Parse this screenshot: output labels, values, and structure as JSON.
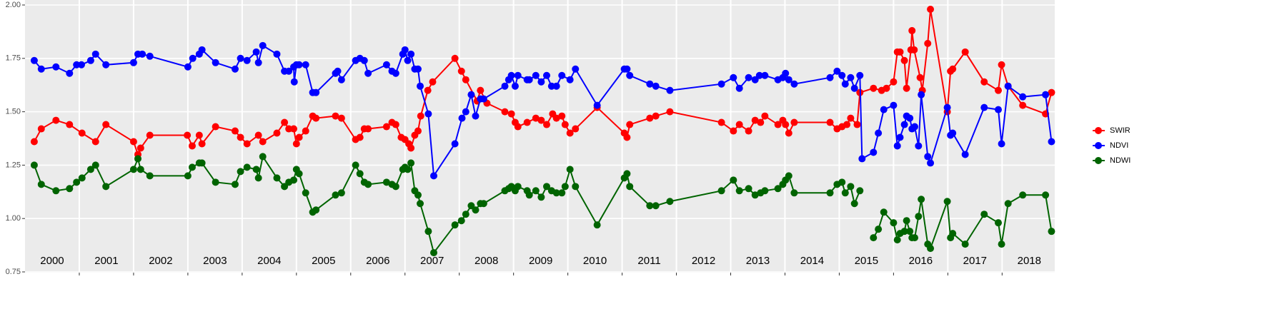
{
  "chart_data": {
    "type": "line",
    "xlim": [
      2000,
      2018.97
    ],
    "xticks": [
      2001,
      2002,
      2003,
      2004,
      2005,
      2006,
      2007,
      2008,
      2009,
      2010,
      2011,
      2012,
      2013,
      2014,
      2015,
      2016,
      2017,
      2018
    ],
    "year_labels": [
      "2000",
      "2001",
      "2002",
      "2003",
      "2004",
      "2005",
      "2006",
      "2007",
      "2008",
      "2009",
      "2010",
      "2011",
      "2012",
      "2013",
      "2014",
      "2015",
      "2016",
      "2017",
      "2018"
    ],
    "ylim": [
      0.75,
      2.0
    ],
    "yticks": [
      0.75,
      {
        "value": 1.0,
        "label": "1.00"
      },
      1.25,
      {
        "value": 1.5,
        "label": "1.50"
      },
      1.75,
      {
        "value": 2.0,
        "label": "2.00"
      }
    ],
    "grid": true,
    "legend": "right",
    "series": [
      {
        "name": "SWIR",
        "color": "#ff0000",
        "x": [
          2000.17,
          2000.3,
          2000.57,
          2000.82,
          2001.05,
          2001.3,
          2001.49,
          2002.0,
          2002.08,
          2002.13,
          2002.3,
          2002.99,
          2003.08,
          2003.21,
          2003.26,
          2003.51,
          2003.87,
          2003.97,
          2004.09,
          2004.3,
          2004.38,
          2004.64,
          2004.78,
          2004.86,
          2004.95,
          2005.0,
          2005.05,
          2005.17,
          2005.3,
          2005.36,
          2005.72,
          2005.83,
          2006.09,
          2006.17,
          2006.25,
          2006.32,
          2006.66,
          2006.76,
          2006.83,
          2006.93,
          2007.0,
          2007.07,
          2007.11,
          2007.18,
          2007.24,
          2007.29,
          2007.42,
          2007.51,
          2007.92,
          2008.04,
          2008.12,
          2008.33,
          2008.39,
          2008.51,
          2008.84,
          2008.96,
          2009.03,
          2009.08,
          2009.25,
          2009.41,
          2009.51,
          2009.61,
          2009.72,
          2009.79,
          2009.89,
          2009.95,
          2010.04,
          2010.14,
          2010.54,
          2011.04,
          2011.09,
          2011.14,
          2011.51,
          2011.62,
          2011.88,
          2012.83,
          2013.05,
          2013.16,
          2013.33,
          2013.45,
          2013.55,
          2013.63,
          2013.87,
          2013.96,
          2014.01,
          2014.07,
          2014.17,
          2014.83,
          2014.96,
          2015.05,
          2015.14,
          2015.21,
          2015.33,
          2015.38,
          2015.63,
          2015.78,
          2015.87,
          2016.0,
          2016.07,
          2016.12,
          2016.2,
          2016.24,
          2016.32,
          2016.34,
          2016.38,
          2016.49,
          2016.53,
          2016.63,
          2016.68,
          2016.99,
          2017.05,
          2017.09,
          2017.32,
          2017.67,
          2017.93,
          2017.99,
          2018.11,
          2018.38,
          2018.8,
          2018.91
        ],
        "values": [
          1.36,
          1.42,
          1.46,
          1.44,
          1.4,
          1.36,
          1.44,
          1.36,
          1.3,
          1.33,
          1.39,
          1.39,
          1.34,
          1.39,
          1.35,
          1.43,
          1.41,
          1.38,
          1.35,
          1.39,
          1.36,
          1.4,
          1.45,
          1.42,
          1.42,
          1.35,
          1.38,
          1.41,
          1.48,
          1.47,
          1.48,
          1.47,
          1.37,
          1.38,
          1.42,
          1.42,
          1.43,
          1.45,
          1.44,
          1.38,
          1.37,
          1.35,
          1.33,
          1.39,
          1.41,
          1.48,
          1.6,
          1.64,
          1.75,
          1.69,
          1.65,
          1.55,
          1.6,
          1.54,
          1.5,
          1.49,
          1.45,
          1.43,
          1.45,
          1.47,
          1.46,
          1.44,
          1.49,
          1.47,
          1.48,
          1.44,
          1.4,
          1.42,
          1.52,
          1.4,
          1.38,
          1.44,
          1.47,
          1.48,
          1.5,
          1.45,
          1.41,
          1.44,
          1.41,
          1.46,
          1.45,
          1.48,
          1.44,
          1.46,
          1.44,
          1.4,
          1.45,
          1.45,
          1.42,
          1.43,
          1.44,
          1.47,
          1.44,
          1.59,
          1.61,
          1.6,
          1.61,
          1.64,
          1.78,
          1.78,
          1.74,
          1.61,
          1.79,
          1.88,
          1.79,
          1.66,
          1.6,
          1.82,
          1.98,
          1.5,
          1.69,
          1.7,
          1.78,
          1.64,
          1.6,
          1.72,
          1.62,
          1.53,
          1.49,
          1.59
        ]
      },
      {
        "name": "NDVI",
        "color": "#0000ff",
        "x": [
          2000.17,
          2000.3,
          2000.57,
          2000.82,
          2000.95,
          2001.04,
          2001.21,
          2001.3,
          2001.49,
          2002.0,
          2002.08,
          2002.16,
          2002.3,
          2003.0,
          2003.09,
          2003.21,
          2003.26,
          2003.51,
          2003.87,
          2003.97,
          2004.09,
          2004.26,
          2004.3,
          2004.38,
          2004.64,
          2004.78,
          2004.86,
          2004.95,
          2004.96,
          2005.0,
          2005.05,
          2005.17,
          2005.3,
          2005.36,
          2005.72,
          2005.76,
          2005.83,
          2006.09,
          2006.17,
          2006.25,
          2006.32,
          2006.66,
          2006.76,
          2006.83,
          2006.96,
          2007.0,
          2007.05,
          2007.11,
          2007.18,
          2007.24,
          2007.28,
          2007.43,
          2007.53,
          2007.92,
          2008.05,
          2008.12,
          2008.22,
          2008.3,
          2008.39,
          2008.45,
          2008.84,
          2008.91,
          2008.96,
          2009.03,
          2009.08,
          2009.25,
          2009.29,
          2009.41,
          2009.51,
          2009.61,
          2009.7,
          2009.79,
          2009.89,
          2010.04,
          2010.14,
          2010.54,
          2011.04,
          2011.09,
          2011.14,
          2011.51,
          2011.62,
          2011.88,
          2012.83,
          2013.05,
          2013.16,
          2013.33,
          2013.45,
          2013.53,
          2013.63,
          2013.87,
          2013.96,
          2014.01,
          2014.07,
          2014.17,
          2014.83,
          2014.96,
          2015.05,
          2015.11,
          2015.21,
          2015.28,
          2015.38,
          2015.42,
          2015.63,
          2015.72,
          2015.82,
          2016.0,
          2016.07,
          2016.12,
          2016.2,
          2016.24,
          2016.3,
          2016.34,
          2016.39,
          2016.46,
          2016.51,
          2016.63,
          2016.68,
          2016.99,
          2017.05,
          2017.09,
          2017.32,
          2017.67,
          2017.93,
          2017.99,
          2018.11,
          2018.38,
          2018.8,
          2018.91
        ],
        "values": [
          1.74,
          1.7,
          1.71,
          1.68,
          1.72,
          1.72,
          1.74,
          1.77,
          1.72,
          1.73,
          1.77,
          1.77,
          1.76,
          1.71,
          1.75,
          1.77,
          1.79,
          1.73,
          1.7,
          1.75,
          1.74,
          1.78,
          1.73,
          1.81,
          1.77,
          1.69,
          1.69,
          1.71,
          1.64,
          1.72,
          1.72,
          1.72,
          1.59,
          1.59,
          1.68,
          1.69,
          1.65,
          1.74,
          1.75,
          1.74,
          1.68,
          1.72,
          1.69,
          1.68,
          1.77,
          1.79,
          1.74,
          1.77,
          1.7,
          1.7,
          1.62,
          1.49,
          1.2,
          1.35,
          1.47,
          1.5,
          1.58,
          1.48,
          1.56,
          1.56,
          1.62,
          1.65,
          1.67,
          1.62,
          1.67,
          1.65,
          1.65,
          1.67,
          1.64,
          1.67,
          1.62,
          1.62,
          1.67,
          1.65,
          1.7,
          1.53,
          1.7,
          1.7,
          1.67,
          1.63,
          1.62,
          1.6,
          1.63,
          1.66,
          1.61,
          1.66,
          1.65,
          1.67,
          1.67,
          1.65,
          1.66,
          1.68,
          1.65,
          1.63,
          1.66,
          1.69,
          1.67,
          1.63,
          1.66,
          1.61,
          1.67,
          1.28,
          1.31,
          1.4,
          1.51,
          1.53,
          1.34,
          1.38,
          1.44,
          1.48,
          1.47,
          1.42,
          1.43,
          1.34,
          1.58,
          1.29,
          1.26,
          1.52,
          1.39,
          1.4,
          1.3,
          1.52,
          1.51,
          1.35,
          1.62,
          1.57,
          1.58,
          1.36
        ]
      },
      {
        "name": "NDWI",
        "color": "#006400",
        "x": [
          2000.17,
          2000.3,
          2000.57,
          2000.82,
          2000.95,
          2001.05,
          2001.21,
          2001.3,
          2001.49,
          2002.0,
          2002.08,
          2002.13,
          2002.3,
          2003.0,
          2003.08,
          2003.21,
          2003.26,
          2003.51,
          2003.87,
          2003.97,
          2004.09,
          2004.26,
          2004.3,
          2004.38,
          2004.64,
          2004.78,
          2004.86,
          2004.95,
          2005.0,
          2005.05,
          2005.17,
          2005.3,
          2005.36,
          2005.72,
          2005.83,
          2006.09,
          2006.17,
          2006.25,
          2006.32,
          2006.66,
          2006.76,
          2006.83,
          2006.96,
          2007.0,
          2007.05,
          2007.11,
          2007.18,
          2007.24,
          2007.28,
          2007.43,
          2007.53,
          2007.92,
          2008.04,
          2008.12,
          2008.22,
          2008.3,
          2008.39,
          2008.45,
          2008.84,
          2008.91,
          2008.96,
          2009.03,
          2009.08,
          2009.25,
          2009.29,
          2009.41,
          2009.51,
          2009.61,
          2009.7,
          2009.79,
          2009.89,
          2009.95,
          2010.04,
          2010.14,
          2010.54,
          2011.04,
          2011.09,
          2011.14,
          2011.51,
          2011.62,
          2011.88,
          2012.83,
          2013.05,
          2013.16,
          2013.33,
          2013.45,
          2013.55,
          2013.63,
          2013.87,
          2013.96,
          2014.01,
          2014.07,
          2014.17,
          2014.83,
          2014.96,
          2015.05,
          2015.11,
          2015.21,
          2015.28,
          2015.38,
          null,
          2015.63,
          2015.72,
          2015.82,
          2016.0,
          2016.07,
          2016.12,
          2016.2,
          2016.24,
          2016.3,
          2016.34,
          2016.39,
          2016.46,
          2016.51,
          2016.63,
          2016.68,
          2016.99,
          2017.05,
          2017.09,
          2017.32,
          2017.67,
          2017.93,
          2017.99,
          2018.11,
          2018.38,
          2018.8,
          2018.91
        ],
        "values": [
          1.25,
          1.16,
          1.13,
          1.14,
          1.17,
          1.19,
          1.23,
          1.25,
          1.15,
          1.23,
          1.28,
          1.23,
          1.2,
          1.2,
          1.24,
          1.26,
          1.26,
          1.17,
          1.16,
          1.22,
          1.24,
          1.23,
          1.19,
          1.29,
          1.19,
          1.15,
          1.17,
          1.18,
          1.23,
          1.21,
          1.12,
          1.03,
          1.04,
          1.11,
          1.12,
          1.25,
          1.21,
          1.17,
          1.16,
          1.17,
          1.16,
          1.15,
          1.23,
          1.24,
          1.23,
          1.26,
          1.13,
          1.11,
          1.07,
          0.94,
          0.84,
          0.97,
          0.99,
          1.02,
          1.06,
          1.04,
          1.07,
          1.07,
          1.13,
          1.14,
          1.15,
          1.13,
          1.15,
          1.13,
          1.11,
          1.13,
          1.1,
          1.15,
          1.13,
          1.12,
          1.12,
          1.15,
          1.23,
          1.15,
          0.97,
          1.19,
          1.21,
          1.15,
          1.06,
          1.06,
          1.08,
          1.13,
          1.18,
          1.13,
          1.14,
          1.11,
          1.12,
          1.13,
          1.14,
          1.16,
          1.18,
          1.2,
          1.12,
          1.12,
          1.16,
          1.17,
          1.12,
          1.15,
          1.07,
          1.13,
          null,
          0.91,
          0.95,
          1.03,
          0.98,
          0.9,
          0.93,
          0.94,
          0.99,
          0.94,
          0.91,
          0.91,
          1.01,
          1.09,
          0.88,
          0.86,
          1.08,
          0.91,
          0.93,
          0.88,
          1.02,
          0.98,
          0.88,
          1.07,
          1.11,
          1.11,
          0.94
        ]
      }
    ]
  }
}
